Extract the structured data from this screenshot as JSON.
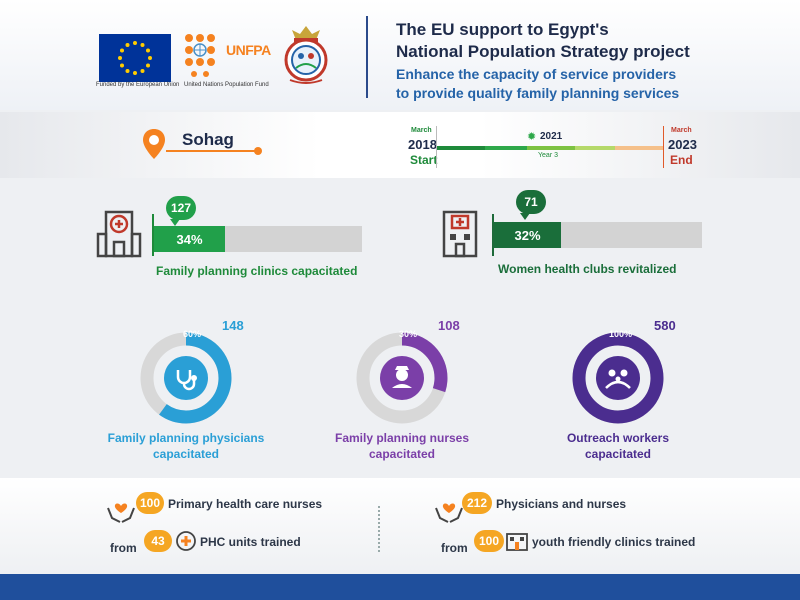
{
  "header": {
    "eu_caption": "Funded by the European Union",
    "unfpa_text": "UNFPA",
    "unfpa_caption": "United Nations Population Fund",
    "title_line1": "The EU support to Egypt's",
    "title_line2": "National Population Strategy project",
    "subtitle_line1": "Enhance the capacity of service providers",
    "subtitle_line2": "to provide quality family planning services"
  },
  "location": {
    "name": "Sohag"
  },
  "timeline": {
    "start_month": "March",
    "start_year": "2018",
    "start_label": "Start",
    "current_year": "2021",
    "current_label": "Year 3",
    "end_month": "March",
    "end_year": "2023",
    "end_label": "End"
  },
  "kpi_bars": [
    {
      "count": "127",
      "percent_label": "34%",
      "percent": 34,
      "label": "Family planning clinics capacitated"
    },
    {
      "count": "71",
      "percent_label": "32%",
      "percent": 32,
      "label": "Women health clubs revitalized"
    }
  ],
  "donuts": [
    {
      "count": "148",
      "percent_label": "60%",
      "percent": 60,
      "label_line1": "Family planning physicians",
      "label_line2": "capacitated",
      "color": "#2a9fd6",
      "icon": "stethoscope-icon"
    },
    {
      "count": "108",
      "percent_label": "30%",
      "percent": 30,
      "label_line1": "Family planning nurses",
      "label_line2": "capacitated",
      "color": "#7b3fa8",
      "icon": "nurse-icon"
    },
    {
      "count": "580",
      "percent_label": "100%",
      "percent": 100,
      "label_line1": "Outreach workers",
      "label_line2": "capacitated",
      "color": "#4b2d8f",
      "icon": "family-icon"
    }
  ],
  "training": {
    "left": {
      "count": "100",
      "text": "Primary health care nurses",
      "from_label": "from",
      "units": "43",
      "units_text": "PHC units trained"
    },
    "right": {
      "count": "212",
      "text": "Physicians and nurses",
      "from_label": "from",
      "units": "100",
      "units_text": "youth friendly clinics trained"
    }
  },
  "colors": {
    "accent_green": "#21a04a",
    "dark_green": "#1a6e3a",
    "orange": "#f5a623",
    "navy": "#1f4f9c"
  }
}
